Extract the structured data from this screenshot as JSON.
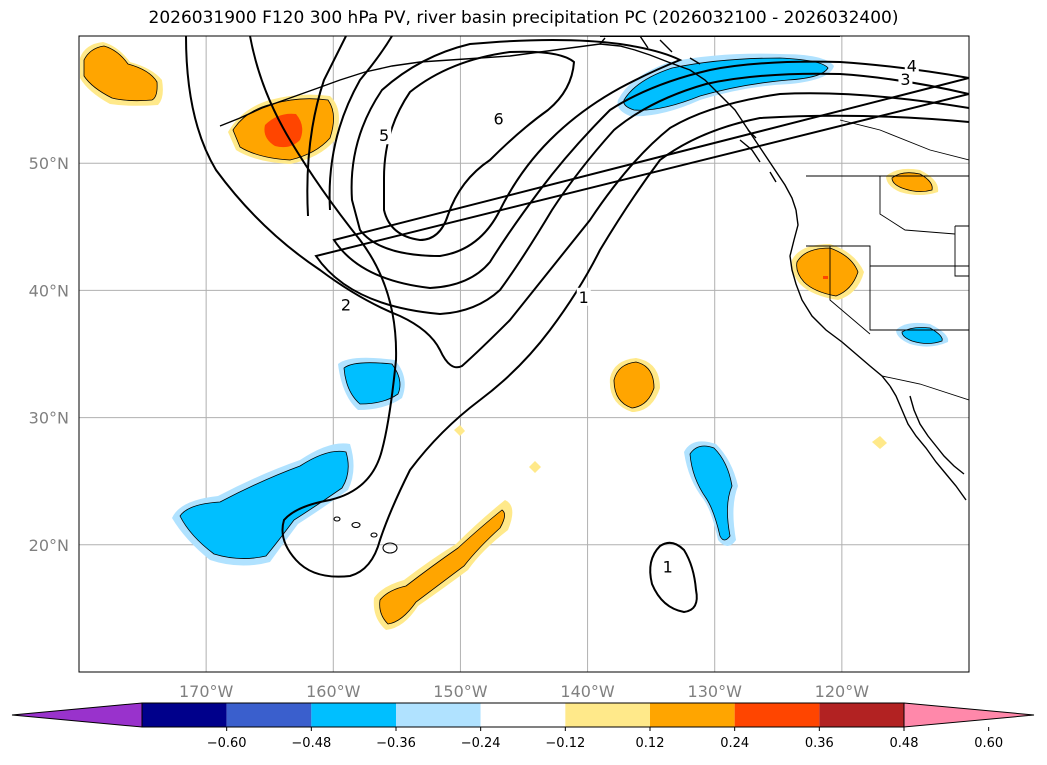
{
  "chart_data": {
    "type": "contour-map",
    "title": "2026031900 F120 300 hPa PV, river basin precipitation PC (2026032100 - 2026032400)",
    "lon_range": [
      -180,
      -110
    ],
    "lat_range": [
      10,
      60
    ],
    "lat_ticks": [
      {
        "value": 50,
        "label": "50°N"
      },
      {
        "value": 40,
        "label": "40°N"
      },
      {
        "value": 30,
        "label": "30°N"
      },
      {
        "value": 20,
        "label": "20°N"
      }
    ],
    "lon_ticks": [
      {
        "value": -170,
        "label": "170°W"
      },
      {
        "value": -160,
        "label": "160°W"
      },
      {
        "value": -150,
        "label": "150°W"
      },
      {
        "value": -140,
        "label": "140°W"
      },
      {
        "value": -130,
        "label": "130°W"
      },
      {
        "value": -120,
        "label": "120°W"
      }
    ],
    "pv_contour_labels": [
      {
        "text": "6",
        "lon": -147,
        "lat": 53.5
      },
      {
        "text": "5",
        "lon": -156,
        "lat": 52.2
      },
      {
        "text": "4",
        "lon": -114.5,
        "lat": 57.7
      },
      {
        "text": "3",
        "lon": -115,
        "lat": 56.6
      },
      {
        "text": "2",
        "lon": -159,
        "lat": 38.9
      },
      {
        "text": "1",
        "lon": -140.3,
        "lat": 39.5
      },
      {
        "text": "1",
        "lon": -133.7,
        "lat": 18.3
      }
    ],
    "colorbar": {
      "levels": [
        "−0.60",
        "−0.48",
        "−0.36",
        "−0.24",
        "−0.12",
        "0.12",
        "0.24",
        "0.36",
        "0.48",
        "0.60"
      ],
      "colors": [
        "#9932cc",
        "#00008b",
        "#3a5fcd",
        "#00bfff",
        "#b0e2ff",
        "#ffffff",
        "#ffe98a",
        "#ffa500",
        "#ff4500",
        "#b22222",
        "#ff88aa"
      ]
    }
  }
}
